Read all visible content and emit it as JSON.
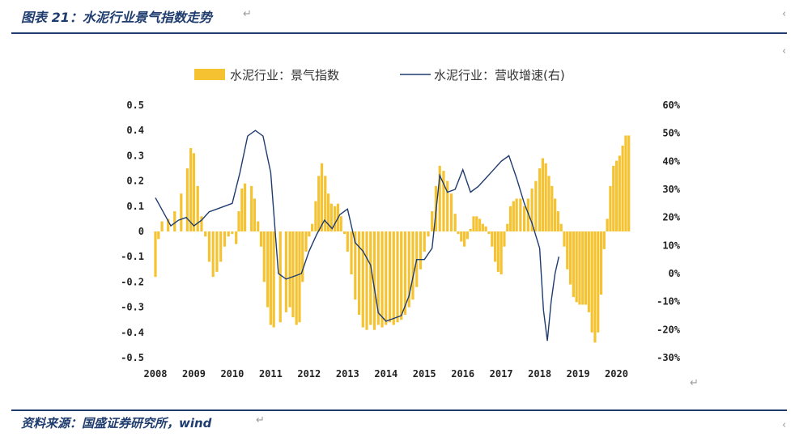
{
  "header": {
    "title": "图表 21：水泥行业景气指数走势"
  },
  "footer": {
    "source": "资料来源：国盛证券研究所，wind"
  },
  "marks": {
    "return_symbol": "↵",
    "arrow_symbol": "‹"
  },
  "colors": {
    "bar": "#f5c332",
    "line": "#1f3c6e",
    "rule": "#1f3c6e"
  },
  "chart_data": {
    "type": "bar",
    "title": "",
    "legend": {
      "bar_label": "水泥行业：景气指数",
      "line_label": "水泥行业：营收增速(右)",
      "placement": "top-center"
    },
    "left_axis": {
      "ylim": [
        -0.5,
        0.5
      ],
      "ticks": [
        0.5,
        0.4,
        0.3,
        0.2,
        0.1,
        0,
        -0.1,
        -0.2,
        -0.3,
        -0.4,
        -0.5
      ],
      "tick_labels": [
        "0.5",
        "0.4",
        "0.3",
        "0.2",
        "0.1",
        "0",
        "-0.1",
        "-0.2",
        "-0.3",
        "-0.4",
        "-0.5"
      ]
    },
    "right_axis": {
      "ylim": [
        -0.3,
        0.6
      ],
      "ticks": [
        0.6,
        0.5,
        0.4,
        0.3,
        0.2,
        0.1,
        0,
        -0.1,
        -0.2,
        -0.3
      ],
      "tick_labels": [
        "60%",
        "50%",
        "40%",
        "30%",
        "20%",
        "10%",
        "0%",
        "-10%",
        "-20%",
        "-30%"
      ]
    },
    "x_axis": {
      "range": [
        2008.0,
        2020.6
      ],
      "ticks": [
        2008,
        2009,
        2010,
        2011,
        2012,
        2013,
        2014,
        2015,
        2016,
        2017,
        2018,
        2019,
        2020
      ],
      "tick_labels": [
        "2008",
        "2009",
        "2010",
        "2011",
        "2012",
        "2013",
        "2014",
        "2015",
        "2016",
        "2017",
        "2018",
        "2019",
        "2020"
      ]
    },
    "bar_series": {
      "name": "水泥行业：景气指数",
      "anchors": [
        [
          2008.0,
          -0.18
        ],
        [
          2008.08,
          -0.03
        ],
        [
          2008.17,
          0.04
        ],
        [
          2008.33,
          0.05
        ],
        [
          2008.5,
          0.08
        ],
        [
          2008.67,
          0.15
        ],
        [
          2008.83,
          0.25
        ],
        [
          2008.92,
          0.33
        ],
        [
          2009.0,
          0.31
        ],
        [
          2009.1,
          0.18
        ],
        [
          2009.2,
          0.06
        ],
        [
          2009.3,
          -0.02
        ],
        [
          2009.4,
          -0.12
        ],
        [
          2009.5,
          -0.18
        ],
        [
          2009.6,
          -0.16
        ],
        [
          2009.7,
          -0.12
        ],
        [
          2009.8,
          -0.06
        ],
        [
          2009.9,
          -0.02
        ],
        [
          2010.0,
          -0.01
        ],
        [
          2010.1,
          -0.05
        ],
        [
          2010.17,
          0.08
        ],
        [
          2010.25,
          0.17
        ],
        [
          2010.33,
          0.19
        ],
        [
          2010.5,
          0.18
        ],
        [
          2010.58,
          0.13
        ],
        [
          2010.67,
          0.04
        ],
        [
          2010.75,
          -0.06
        ],
        [
          2010.83,
          -0.2
        ],
        [
          2010.92,
          -0.3
        ],
        [
          2011.0,
          -0.37
        ],
        [
          2011.08,
          -0.38
        ],
        [
          2011.25,
          -0.36
        ],
        [
          2011.4,
          -0.32
        ],
        [
          2011.5,
          -0.3
        ],
        [
          2011.58,
          -0.34
        ],
        [
          2011.67,
          -0.37
        ],
        [
          2011.75,
          -0.36
        ],
        [
          2011.83,
          -0.2
        ],
        [
          2011.92,
          -0.08
        ],
        [
          2012.0,
          -0.02
        ],
        [
          2012.08,
          0.03
        ],
        [
          2012.17,
          0.12
        ],
        [
          2012.25,
          0.22
        ],
        [
          2012.33,
          0.27
        ],
        [
          2012.42,
          0.22
        ],
        [
          2012.5,
          0.15
        ],
        [
          2012.58,
          0.11
        ],
        [
          2012.67,
          0.1
        ],
        [
          2012.75,
          0.11
        ],
        [
          2012.83,
          0.06
        ],
        [
          2012.92,
          -0.01
        ],
        [
          2013.0,
          -0.08
        ],
        [
          2013.1,
          -0.17
        ],
        [
          2013.2,
          -0.27
        ],
        [
          2013.3,
          -0.33
        ],
        [
          2013.4,
          -0.38
        ],
        [
          2013.5,
          -0.39
        ],
        [
          2013.6,
          -0.37
        ],
        [
          2013.7,
          -0.39
        ],
        [
          2013.8,
          -0.37
        ],
        [
          2013.9,
          -0.38
        ],
        [
          2014.0,
          -0.37
        ],
        [
          2014.1,
          -0.36
        ],
        [
          2014.2,
          -0.37
        ],
        [
          2014.3,
          -0.36
        ],
        [
          2014.4,
          -0.35
        ],
        [
          2014.5,
          -0.33
        ],
        [
          2014.6,
          -0.3
        ],
        [
          2014.7,
          -0.27
        ],
        [
          2014.8,
          -0.22
        ],
        [
          2014.9,
          -0.15
        ],
        [
          2015.0,
          -0.08
        ],
        [
          2015.1,
          -0.02
        ],
        [
          2015.2,
          0.08
        ],
        [
          2015.3,
          0.18
        ],
        [
          2015.4,
          0.26
        ],
        [
          2015.5,
          0.24
        ],
        [
          2015.6,
          0.2
        ],
        [
          2015.7,
          0.15
        ],
        [
          2015.8,
          0.07
        ],
        [
          2015.88,
          -0.01
        ],
        [
          2015.96,
          -0.04
        ],
        [
          2016.04,
          -0.06
        ],
        [
          2016.12,
          -0.03
        ],
        [
          2016.2,
          0.01
        ],
        [
          2016.28,
          0.06
        ],
        [
          2016.36,
          0.06
        ],
        [
          2016.44,
          0.05
        ],
        [
          2016.52,
          0.03
        ],
        [
          2016.6,
          0.02
        ],
        [
          2016.68,
          -0.01
        ],
        [
          2016.76,
          -0.06
        ],
        [
          2016.84,
          -0.12
        ],
        [
          2016.92,
          -0.16
        ],
        [
          2017.0,
          -0.17
        ],
        [
          2017.08,
          -0.06
        ],
        [
          2017.16,
          0.03
        ],
        [
          2017.24,
          0.1
        ],
        [
          2017.32,
          0.12
        ],
        [
          2017.4,
          0.13
        ],
        [
          2017.5,
          0.13
        ],
        [
          2017.6,
          0.1
        ],
        [
          2017.7,
          0.13
        ],
        [
          2017.8,
          0.17
        ],
        [
          2017.9,
          0.2
        ],
        [
          2018.0,
          0.25
        ],
        [
          2018.08,
          0.29
        ],
        [
          2018.16,
          0.27
        ],
        [
          2018.24,
          0.22
        ],
        [
          2018.32,
          0.18
        ],
        [
          2018.4,
          0.13
        ],
        [
          2018.48,
          0.08
        ],
        [
          2018.56,
          0.03
        ],
        [
          2018.64,
          -0.06
        ],
        [
          2018.72,
          -0.15
        ],
        [
          2018.8,
          -0.21
        ],
        [
          2018.88,
          -0.26
        ],
        [
          2018.96,
          -0.28
        ],
        [
          2019.04,
          -0.29
        ],
        [
          2019.12,
          -0.29
        ],
        [
          2019.2,
          -0.29
        ],
        [
          2019.28,
          -0.32
        ],
        [
          2019.36,
          -0.4
        ],
        [
          2019.44,
          -0.44
        ],
        [
          2019.52,
          -0.4
        ],
        [
          2019.6,
          -0.25
        ],
        [
          2019.68,
          -0.07
        ],
        [
          2019.76,
          0.05
        ],
        [
          2019.84,
          0.18
        ],
        [
          2019.92,
          0.26
        ],
        [
          2020.0,
          0.28
        ],
        [
          2020.08,
          0.3
        ],
        [
          2020.16,
          0.34
        ],
        [
          2020.24,
          0.38
        ],
        [
          2020.32,
          0.38
        ]
      ]
    },
    "line_series": {
      "name": "水泥行业：营收增速(右)",
      "points": [
        [
          2008.0,
          0.27
        ],
        [
          2008.2,
          0.22
        ],
        [
          2008.4,
          0.17
        ],
        [
          2008.6,
          0.19
        ],
        [
          2008.8,
          0.2
        ],
        [
          2009.0,
          0.17
        ],
        [
          2009.2,
          0.19
        ],
        [
          2009.4,
          0.22
        ],
        [
          2009.6,
          0.23
        ],
        [
          2009.8,
          0.24
        ],
        [
          2010.0,
          0.25
        ],
        [
          2010.2,
          0.36
        ],
        [
          2010.4,
          0.49
        ],
        [
          2010.6,
          0.51
        ],
        [
          2010.8,
          0.49
        ],
        [
          2011.0,
          0.36
        ],
        [
          2011.2,
          0.0
        ],
        [
          2011.4,
          -0.02
        ],
        [
          2011.6,
          -0.01
        ],
        [
          2011.8,
          0.0
        ],
        [
          2012.0,
          0.08
        ],
        [
          2012.2,
          0.14
        ],
        [
          2012.4,
          0.19
        ],
        [
          2012.6,
          0.16
        ],
        [
          2012.8,
          0.21
        ],
        [
          2013.0,
          0.23
        ],
        [
          2013.2,
          0.11
        ],
        [
          2013.4,
          0.08
        ],
        [
          2013.6,
          0.03
        ],
        [
          2013.8,
          -0.14
        ],
        [
          2014.0,
          -0.17
        ],
        [
          2014.2,
          -0.16
        ],
        [
          2014.4,
          -0.15
        ],
        [
          2014.6,
          -0.08
        ],
        [
          2014.8,
          0.05
        ],
        [
          2015.0,
          0.05
        ],
        [
          2015.2,
          0.09
        ],
        [
          2015.4,
          0.35
        ],
        [
          2015.6,
          0.29
        ],
        [
          2015.8,
          0.3
        ],
        [
          2016.0,
          0.37
        ],
        [
          2016.2,
          0.29
        ],
        [
          2016.4,
          0.31
        ],
        [
          2016.6,
          0.34
        ],
        [
          2016.8,
          0.37
        ],
        [
          2017.0,
          0.4
        ],
        [
          2017.2,
          0.42
        ],
        [
          2017.4,
          0.34
        ],
        [
          2017.6,
          0.25
        ],
        [
          2017.8,
          0.18
        ],
        [
          2018.0,
          0.09
        ],
        [
          2018.1,
          -0.13
        ],
        [
          2018.2,
          -0.24
        ],
        [
          2018.3,
          -0.1
        ],
        [
          2018.4,
          0.0
        ],
        [
          2018.5,
          0.06
        ]
      ]
    }
  }
}
